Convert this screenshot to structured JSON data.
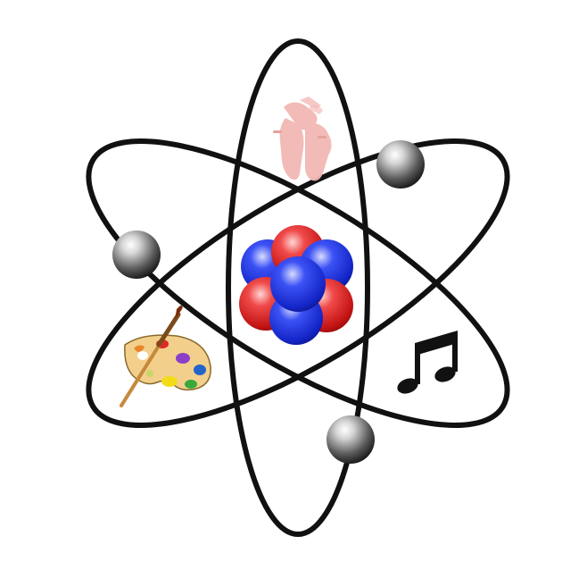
{
  "illustration": {
    "subject": "arts-atom",
    "colors": {
      "background": "#ffffff",
      "orbit": "#111111",
      "proton": "#e02020",
      "neutron": "#1f35e8",
      "electron": "#2a2a2a",
      "ballet_shoes": "#f2b8b4",
      "palette_wood": "#f3cf8c",
      "music_note": "#111111"
    },
    "icons": {
      "dance": "ballet-shoes-icon",
      "art": "paint-palette-icon",
      "music": "music-note-icon"
    }
  }
}
